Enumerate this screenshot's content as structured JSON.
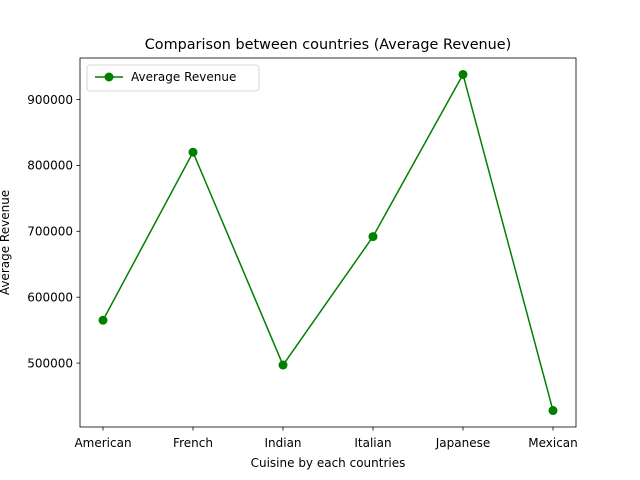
{
  "chart_data": {
    "type": "line",
    "title": "Comparison between countries (Average Revenue)",
    "xlabel": "Cuisine by each countries",
    "ylabel": "Average Revenue",
    "categories": [
      "American",
      "French",
      "Indian",
      "Italian",
      "Japanese",
      "Mexican"
    ],
    "series": [
      {
        "name": "Average Revenue",
        "values": [
          565000,
          820000,
          497000,
          692000,
          938000,
          428000
        ],
        "color": "#008000"
      }
    ],
    "yticks": [
      500000,
      600000,
      700000,
      800000,
      900000
    ],
    "ytick_labels": [
      "500000",
      "600000",
      "700000",
      "800000",
      "900000"
    ],
    "ylim": [
      403000,
      963000
    ],
    "grid": false,
    "legend": "top-left"
  }
}
